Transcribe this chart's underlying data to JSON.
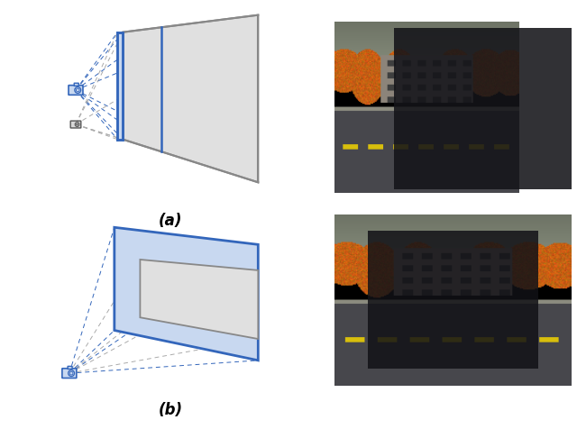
{
  "label_a": "(a)",
  "label_b": "(b)",
  "blue_color": "#3366BB",
  "blue_fill": "#C8D8F0",
  "gray_fill": "#E0E0E0",
  "gray_stroke": "#888888",
  "white_bg": "#FFFFFF",
  "dashed_blue": "#3366BB",
  "dashed_gray": "#AAAAAA"
}
